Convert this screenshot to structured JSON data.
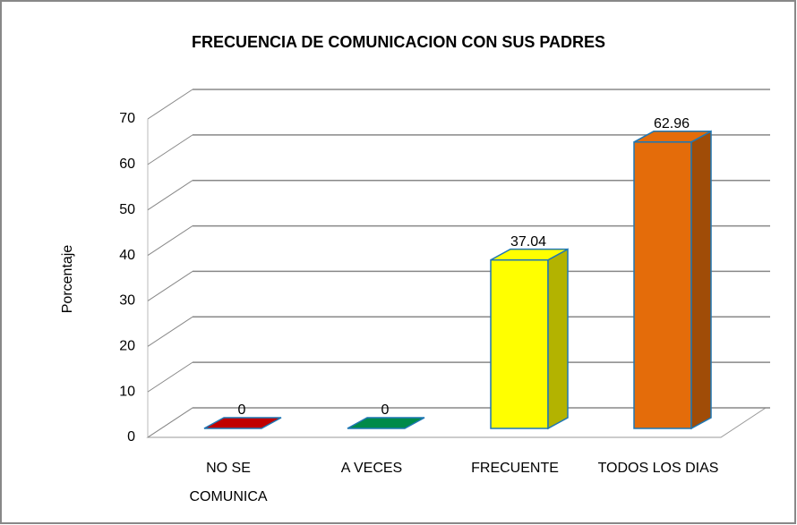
{
  "chart_data": {
    "type": "bar3d",
    "title": "FRECUENCIA DE COMUNICACION CON SUS PADRES",
    "ylabel": "Porcentaje",
    "categories": [
      "NO  SE COMUNICA",
      "A VECES",
      "FRECUENTE",
      "TODOS LOS DIAS"
    ],
    "values": [
      0,
      0,
      37.04,
      62.96
    ],
    "colors": [
      "#c00000",
      "#008a4a",
      "#ffff00",
      "#e46c0a"
    ],
    "ylim": [
      0,
      70
    ],
    "yticks": [
      0,
      10,
      20,
      30,
      40,
      50,
      60,
      70
    ],
    "grid": true
  }
}
